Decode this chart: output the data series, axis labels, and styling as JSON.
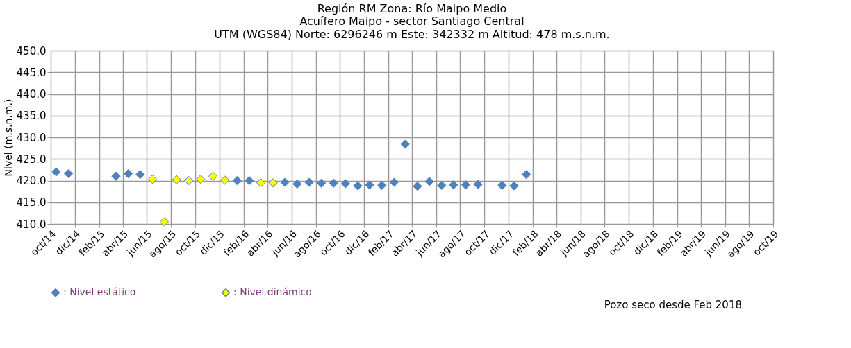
{
  "chart_data": {
    "type": "scatter",
    "title": [
      "Región RM Zona: Río Maipo Medio",
      "Acuífero Maipo - sector Santiago Central"
    ],
    "subtitle": "UTM (WGS84) Norte: 6296246 m  Este: 342332 m   Altitud: 478 m.s.n.m.",
    "ylabel": "Nivel (m.s.n.m.)",
    "series": [
      {
        "name": ": Nivel estático",
        "color": "#4f81bd",
        "x": [
          "2014-10-15",
          "2014-11-15",
          "2015-03-15",
          "2015-04-15",
          "2015-05-15",
          "2016-01-15",
          "2016-02-15",
          "2016-05-15",
          "2016-06-15",
          "2016-07-15",
          "2016-08-15",
          "2016-09-15",
          "2016-10-15",
          "2016-11-15",
          "2016-12-15",
          "2017-01-15",
          "2017-02-15",
          "2017-03-15",
          "2017-04-15",
          "2017-05-15",
          "2017-06-15",
          "2017-07-15",
          "2017-08-15",
          "2017-09-15",
          "2017-11-15",
          "2017-12-15",
          "2018-01-15"
        ],
        "values": [
          422.0,
          421.6,
          421.0,
          421.6,
          421.4,
          420.0,
          420.0,
          419.6,
          419.2,
          419.6,
          419.4,
          419.4,
          419.3,
          418.8,
          419.0,
          418.9,
          419.6,
          428.4,
          418.7,
          419.8,
          418.9,
          419.0,
          419.0,
          419.1,
          418.9,
          418.8,
          421.4
        ]
      },
      {
        "name": ": Nivel dinámico",
        "color": "#ffff00",
        "x": [
          "2015-06-15",
          "2015-07-15",
          "2015-08-15",
          "2015-09-15",
          "2015-10-15",
          "2015-11-15",
          "2015-12-15",
          "2016-03-15",
          "2016-04-15"
        ],
        "values": [
          420.3,
          410.5,
          420.2,
          420.0,
          420.3,
          421.0,
          420.1,
          419.5,
          419.5
        ]
      }
    ],
    "xlim": [
      "2014-10-01",
      "2019-10-01"
    ],
    "xticks": [
      {
        "value": "2014-10-01",
        "label": "oct/14"
      },
      {
        "value": "2014-12-01",
        "label": "dic/14"
      },
      {
        "value": "2015-02-01",
        "label": "feb/15"
      },
      {
        "value": "2015-04-01",
        "label": "abr/15"
      },
      {
        "value": "2015-06-01",
        "label": "jun/15"
      },
      {
        "value": "2015-08-01",
        "label": "ago/15"
      },
      {
        "value": "2015-10-01",
        "label": "oct/15"
      },
      {
        "value": "2015-12-01",
        "label": "dic/15"
      },
      {
        "value": "2016-02-01",
        "label": "feb/16"
      },
      {
        "value": "2016-04-01",
        "label": "abr/16"
      },
      {
        "value": "2016-06-01",
        "label": "jun/16"
      },
      {
        "value": "2016-08-01",
        "label": "ago/16"
      },
      {
        "value": "2016-10-01",
        "label": "oct/16"
      },
      {
        "value": "2016-12-01",
        "label": "dic/16"
      },
      {
        "value": "2017-02-01",
        "label": "feb/17"
      },
      {
        "value": "2017-04-01",
        "label": "abr/17"
      },
      {
        "value": "2017-06-01",
        "label": "jun/17"
      },
      {
        "value": "2017-08-01",
        "label": "ago/17"
      },
      {
        "value": "2017-10-01",
        "label": "oct/17"
      },
      {
        "value": "2017-12-01",
        "label": "dic/17"
      },
      {
        "value": "2018-02-01",
        "label": "feb/18"
      },
      {
        "value": "2018-04-01",
        "label": "abr/18"
      },
      {
        "value": "2018-06-01",
        "label": "jun/18"
      },
      {
        "value": "2018-08-01",
        "label": "ago/18"
      },
      {
        "value": "2018-10-01",
        "label": "oct/18"
      },
      {
        "value": "2018-12-01",
        "label": "dic/18"
      },
      {
        "value": "2019-02-01",
        "label": "feb/19"
      },
      {
        "value": "2019-04-01",
        "label": "abr/19"
      },
      {
        "value": "2019-06-01",
        "label": "jun/19"
      },
      {
        "value": "2019-08-01",
        "label": "ago/19"
      },
      {
        "value": "2019-10-01",
        "label": "oct/19"
      }
    ],
    "ylim": [
      410,
      450
    ],
    "yticks": [
      {
        "value": 410,
        "label": "410.0"
      },
      {
        "value": 415,
        "label": "415.0"
      },
      {
        "value": 420,
        "label": "420.0"
      },
      {
        "value": 425,
        "label": "425.0"
      },
      {
        "value": 430,
        "label": "430.0"
      },
      {
        "value": 435,
        "label": "435.0"
      },
      {
        "value": 440,
        "label": "440.0"
      },
      {
        "value": 445,
        "label": "445.0"
      },
      {
        "value": 450,
        "label": "450.0"
      }
    ],
    "annotations": [
      "Pozo seco  desde Feb 2018"
    ],
    "grid": true,
    "legend": "bottom",
    "marker": "diamond"
  }
}
